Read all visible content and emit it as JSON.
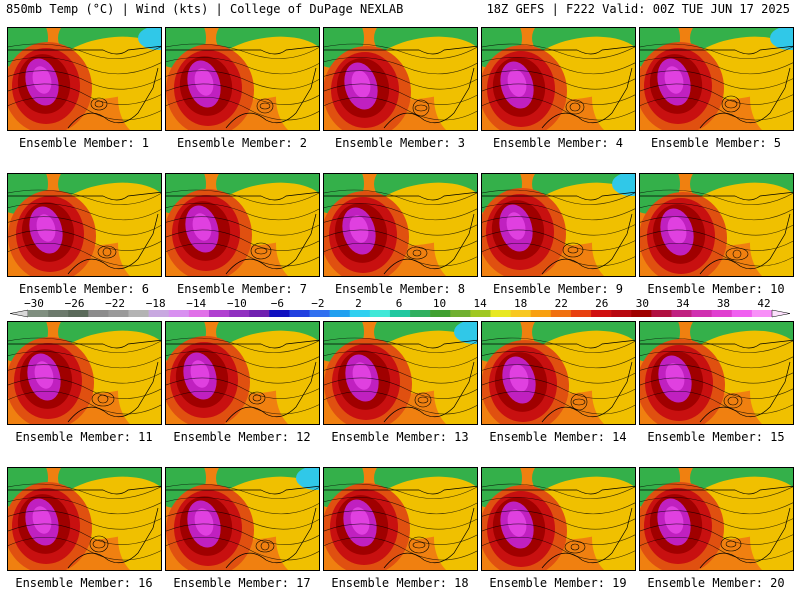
{
  "header": {
    "left": "850mb Temp (°C) | Wind (kts) | College of DuPage NEXLAB",
    "right": "18Z GEFS | F222 Valid: 00Z TUE JUN 17 2025"
  },
  "members": [
    {
      "label": "Ensemble Member: 1"
    },
    {
      "label": "Ensemble Member: 2"
    },
    {
      "label": "Ensemble Member: 3"
    },
    {
      "label": "Ensemble Member: 4"
    },
    {
      "label": "Ensemble Member: 5"
    },
    {
      "label": "Ensemble Member: 6"
    },
    {
      "label": "Ensemble Member: 7"
    },
    {
      "label": "Ensemble Member: 8"
    },
    {
      "label": "Ensemble Member: 9"
    },
    {
      "label": "Ensemble Member: 10"
    },
    {
      "label": "Ensemble Member: 11"
    },
    {
      "label": "Ensemble Member: 12"
    },
    {
      "label": "Ensemble Member: 13"
    },
    {
      "label": "Ensemble Member: 14"
    },
    {
      "label": "Ensemble Member: 15"
    },
    {
      "label": "Ensemble Member: 16"
    },
    {
      "label": "Ensemble Member: 17"
    },
    {
      "label": "Ensemble Member: 18"
    },
    {
      "label": "Ensemble Member: 19"
    },
    {
      "label": "Ensemble Member: 20"
    }
  ],
  "colorbar": {
    "ticks": [
      "−30",
      "−26",
      "−22",
      "−18",
      "−14",
      "−10",
      "−6",
      "−2",
      "2",
      "6",
      "10",
      "14",
      "18",
      "22",
      "26",
      "30",
      "34",
      "38",
      "42"
    ],
    "colors": [
      "#7f8f7f",
      "#6c7a6c",
      "#5a6a5a",
      "#8c8c8c",
      "#9a9a9a",
      "#b3b3b3",
      "#c8a8e0",
      "#d890f0",
      "#e070e8",
      "#b040d0",
      "#9030c0",
      "#7020b0",
      "#1010c0",
      "#2040e0",
      "#3070f0",
      "#20a0f0",
      "#30d0f0",
      "#40e8d8",
      "#20c8a0",
      "#30b060",
      "#40a030",
      "#70b030",
      "#a0c820",
      "#e8e820",
      "#f8c820",
      "#f8a010",
      "#f07010",
      "#e84010",
      "#d01010",
      "#b80810",
      "#a00000",
      "#b01040",
      "#c02080",
      "#d030b0",
      "#e040d0",
      "#f060f0",
      "#f890f8"
    ],
    "zone_colors": {
      "ocean_green": "#34b04a",
      "land_yellow": "#f0c000",
      "orange": "#f08010",
      "dark_orange": "#e05010",
      "red": "#c81010",
      "dark_red": "#a00000",
      "magenta": "#c020c0",
      "light_magenta": "#e040e0",
      "cyan": "#30c8e8"
    }
  }
}
